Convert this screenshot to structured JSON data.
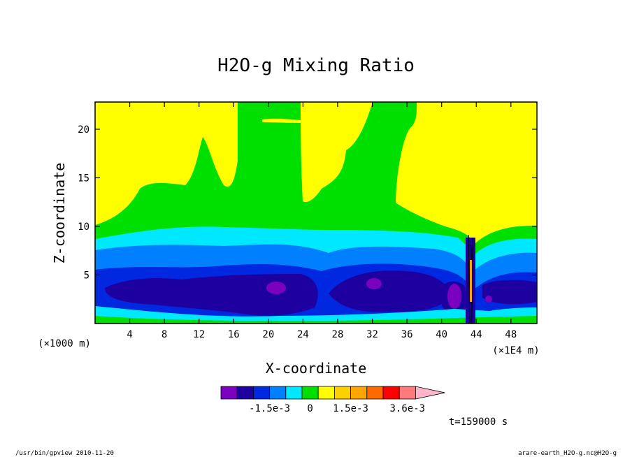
{
  "chart_data": {
    "type": "heatmap",
    "title": "H2O-g Mixing Ratio",
    "xlabel": "X-coordinate",
    "ylabel": "Z-coordinate",
    "x_unit_label": "(×1000 m)",
    "x_scale_label": "(×1E4 m)",
    "xlim": [
      0,
      51
    ],
    "ylim": [
      0,
      22.8
    ],
    "x_ticks": [
      "4",
      "8",
      "12",
      "16",
      "20",
      "24",
      "28",
      "32",
      "36",
      "40",
      "44",
      "48"
    ],
    "y_ticks": [
      "5",
      "10",
      "15",
      "20"
    ],
    "colorbar": {
      "colors": [
        "#7b00c0",
        "#1e00a0",
        "#0028e0",
        "#0080ff",
        "#00e8ff",
        "#00e000",
        "#ffff00",
        "#ffd000",
        "#ffa500",
        "#ff6a00",
        "#ff0000",
        "#ff7b7b",
        "#ffb4c8"
      ],
      "labels": [
        "-1.5e-3",
        "0",
        "1.5e-3",
        "3.6e-3"
      ]
    },
    "annotation": "t=159000 s"
  },
  "footer": {
    "left": "/usr/bin/gpview  2010-11-20",
    "right": "arare-earth_H2O-g.nc@H2O-g"
  }
}
